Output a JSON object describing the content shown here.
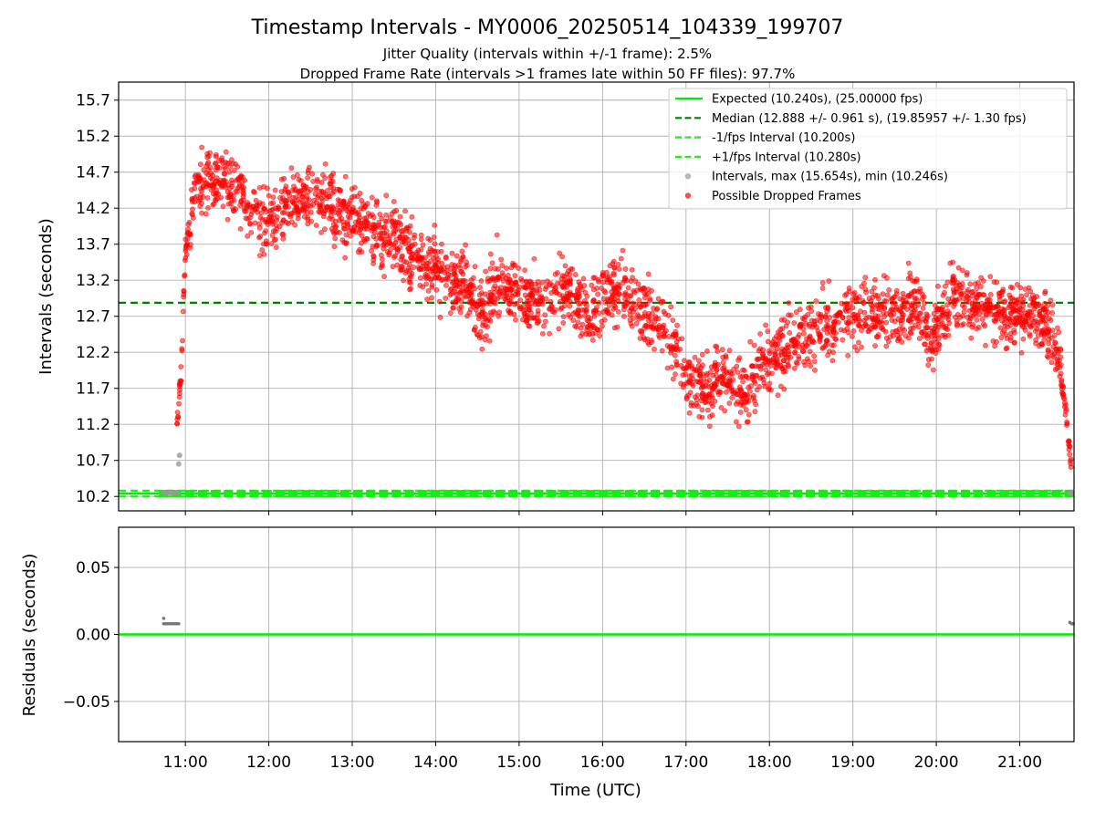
{
  "chart_data": [
    {
      "type": "scatter",
      "title": "Timestamp Intervals - MY0006_20250514_104339_199707",
      "subtitle_lines": [
        "Jitter Quality (intervals within +/-1 frame): 2.5%",
        "Dropped Frame Rate (intervals >1 frames late within 50 FF files): 97.7%"
      ],
      "xlabel": "",
      "ylabel": "Intervals (seconds)",
      "xlim_hours": [
        10.2,
        21.65
      ],
      "ylim": [
        10.0,
        15.95
      ],
      "yticks": [
        10.2,
        10.7,
        11.2,
        11.7,
        12.2,
        12.7,
        13.2,
        13.7,
        14.2,
        14.7,
        15.2,
        15.7
      ],
      "ytick_labels": [
        "10.2",
        "10.7",
        "11.2",
        "11.7",
        "12.2",
        "12.7",
        "13.2",
        "13.7",
        "14.2",
        "14.7",
        "15.2",
        "15.7"
      ],
      "xticks_hours": [
        11,
        12,
        13,
        14,
        15,
        16,
        17,
        18,
        19,
        20,
        21
      ],
      "grid": true,
      "legend_position": "top-right",
      "legend": [
        {
          "label": "Expected (10.240s), (25.00000 fps)",
          "style": "solid",
          "color": "#00ee00"
        },
        {
          "label": "Median (12.888 +/- 0.961 s), (19.85957 +/- 1.30 fps)",
          "style": "dashed",
          "color": "#008000"
        },
        {
          "label": "-1/fps Interval (10.200s)",
          "style": "dashed",
          "color": "#22ee22"
        },
        {
          "label": "+1/fps Interval (10.280s)",
          "style": "dashed",
          "color": "#22ee22"
        },
        {
          "label": "Intervals, max (15.654s), min (10.246s)",
          "style": "marker",
          "color": "#999999"
        },
        {
          "label": "Possible Dropped Frames",
          "style": "marker",
          "color": "#ff0000"
        }
      ],
      "hlines": [
        {
          "y": 10.24,
          "color": "#00ee00",
          "style": "solid"
        },
        {
          "y": 12.888,
          "color": "#008000",
          "style": "dashed"
        },
        {
          "y": 10.2,
          "color": "#22ee22",
          "style": "dashed"
        },
        {
          "y": 10.28,
          "color": "#22ee22",
          "style": "dashed"
        }
      ],
      "series": [
        {
          "name": "Possible Dropped Frames",
          "color": "#ff0000",
          "trend_hours": [
            10.9,
            10.95,
            11.0,
            11.1,
            11.25,
            11.4,
            11.6,
            11.8,
            12.0,
            12.3,
            12.6,
            12.9,
            13.2,
            13.5,
            13.7,
            13.9,
            14.1,
            14.35,
            14.55,
            14.75,
            15.0,
            15.3,
            15.6,
            15.85,
            16.1,
            16.35,
            16.6,
            16.8,
            17.0,
            17.2,
            17.45,
            17.7,
            17.85,
            18.0,
            18.3,
            18.6,
            18.9,
            19.2,
            19.5,
            19.75,
            19.95,
            20.2,
            20.45,
            20.7,
            20.9,
            21.1,
            21.3,
            21.45,
            21.55,
            21.62
          ],
          "trend_values": [
            11.2,
            12.0,
            13.6,
            14.3,
            14.6,
            14.6,
            14.5,
            14.1,
            14.0,
            14.3,
            14.3,
            14.1,
            13.9,
            13.8,
            13.6,
            13.4,
            13.2,
            13.2,
            12.7,
            13.2,
            13.0,
            12.9,
            13.1,
            12.6,
            13.1,
            12.9,
            12.7,
            12.4,
            11.9,
            11.7,
            11.9,
            11.6,
            11.9,
            12.1,
            12.3,
            12.5,
            12.7,
            12.8,
            12.7,
            12.9,
            12.4,
            13.0,
            12.9,
            12.8,
            12.7,
            12.8,
            12.6,
            12.2,
            11.4,
            10.6
          ],
          "spread": 0.32
        },
        {
          "name": "Intervals, max (15.654s), min (10.246s)",
          "color": "#999999",
          "x_hours": [
            10.74,
            10.78,
            10.82,
            10.86,
            10.9,
            10.92,
            10.93,
            21.6,
            21.62
          ],
          "values": [
            10.25,
            10.25,
            10.25,
            10.25,
            10.25,
            10.65,
            10.77,
            10.25,
            10.25
          ]
        }
      ]
    },
    {
      "type": "scatter",
      "xlabel": "Time (UTC)",
      "ylabel": "Residuals (seconds)",
      "xlim_hours": [
        10.2,
        21.65
      ],
      "ylim": [
        -0.08,
        0.08
      ],
      "yticks": [
        0.05,
        0.0,
        -0.05
      ],
      "ytick_labels": [
        "0.05",
        "0.00",
        "−0.05"
      ],
      "xticks_hours": [
        11,
        12,
        13,
        14,
        15,
        16,
        17,
        18,
        19,
        20,
        21
      ],
      "xtick_labels": [
        "11:00",
        "12:00",
        "13:00",
        "14:00",
        "15:00",
        "16:00",
        "17:00",
        "18:00",
        "19:00",
        "20:00",
        "21:00"
      ],
      "grid": true,
      "hlines": [
        {
          "y": 0.0,
          "color": "#00ee00",
          "style": "solid"
        }
      ],
      "series": [
        {
          "name": "residuals",
          "color": "#777777",
          "x_hours": [
            10.74,
            10.76,
            10.78,
            10.8,
            10.82,
            10.84,
            10.86,
            10.88,
            10.9,
            10.92,
            10.74,
            21.6,
            21.62,
            21.64
          ],
          "values": [
            0.008,
            0.008,
            0.008,
            0.008,
            0.008,
            0.008,
            0.008,
            0.008,
            0.008,
            0.008,
            0.012,
            0.009,
            0.008,
            0.008
          ]
        }
      ]
    }
  ]
}
